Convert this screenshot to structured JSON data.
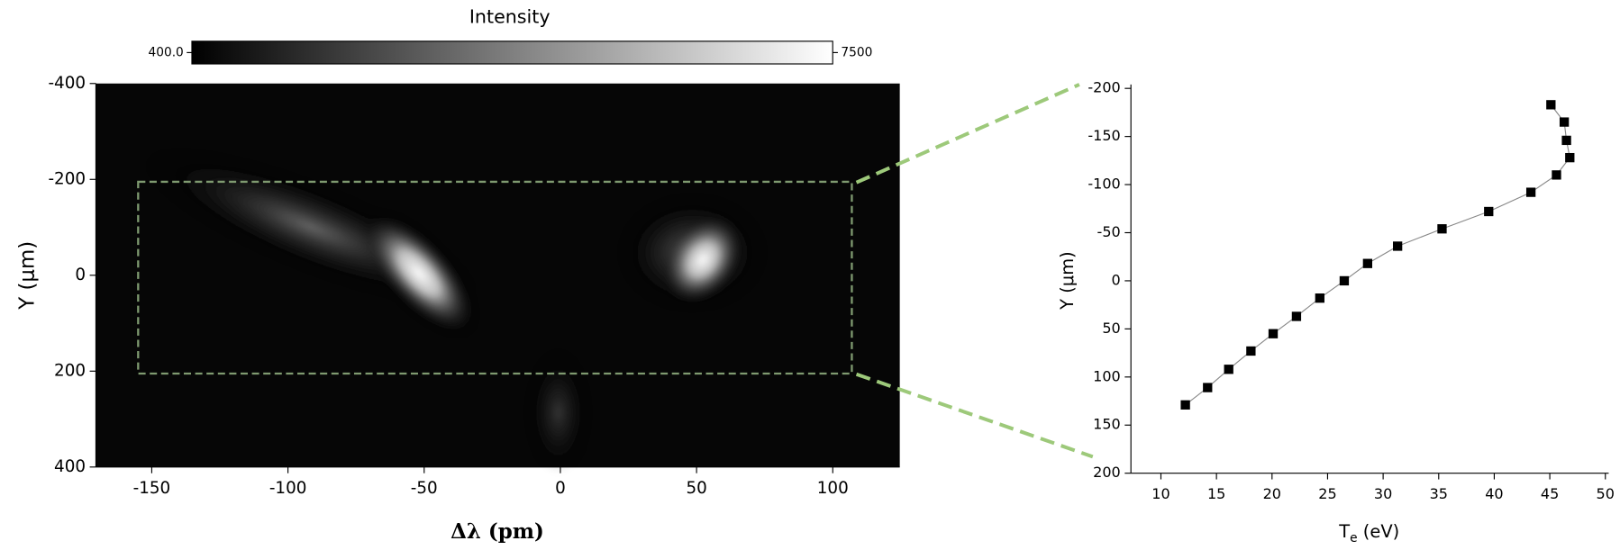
{
  "chart_data": [
    {
      "type": "heatmap",
      "colorbar_title": "Intensity",
      "clim": [
        400,
        7500
      ],
      "cticks": [
        {
          "value": 400,
          "label": "400.0"
        },
        7500
      ],
      "xlabel": "Δλ (pm)",
      "ylabel": "Y (μm)",
      "xlim": [
        -170.5,
        124.6
      ],
      "xticks": [
        -150,
        -100,
        -50,
        0,
        50,
        100
      ],
      "ylim": [
        -400,
        400
      ],
      "yticks": [
        -400,
        -200,
        0,
        200,
        400
      ],
      "y_inverted": true,
      "roi": {
        "x": [
          -155,
          107
        ],
        "y": [
          -195,
          205
        ]
      },
      "roi_color": "#7f9a70"
    },
    {
      "type": "line",
      "xlabel_main": "T",
      "xlabel_sub": "e",
      "xlabel_rest": " (eV)",
      "ylabel": "Y (μm)",
      "xlim": [
        7.3,
        50.3
      ],
      "xticks": [
        10,
        15,
        20,
        25,
        30,
        35,
        40,
        45,
        50
      ],
      "ylim": [
        -204,
        200
      ],
      "yticks": [
        -200,
        -150,
        -100,
        -50,
        0,
        50,
        100,
        150,
        200
      ],
      "y_inverted": true,
      "series": [
        {
          "color": "#000000",
          "x": [
            45.1,
            46.3,
            46.5,
            46.8,
            45.6,
            43.3,
            39.5,
            35.3,
            31.3,
            28.6,
            26.5,
            24.3,
            22.2,
            20.1,
            18.1,
            16.1,
            14.2,
            12.2
          ],
          "values": [
            -183,
            -165,
            -146,
            -128,
            -110,
            -92,
            -72,
            -54,
            -36,
            -18,
            0,
            18,
            37,
            55,
            73,
            92,
            111,
            129
          ]
        }
      ]
    }
  ]
}
